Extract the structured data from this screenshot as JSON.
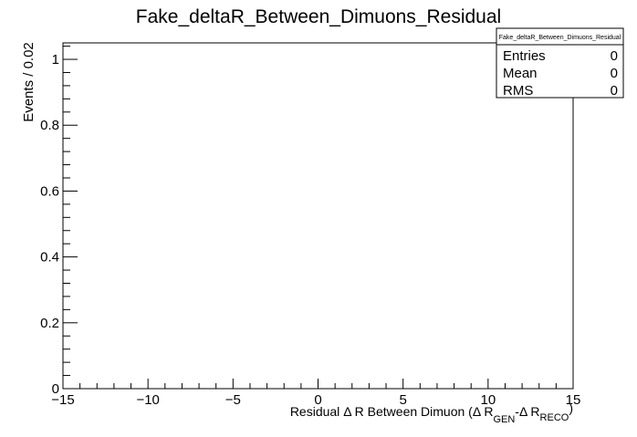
{
  "chart_data": {
    "type": "bar",
    "title": "Fake_deltaR_Between_Dimuons_Residual",
    "xlabel": {
      "prefix": "Residual ",
      "delta": "Δ",
      "middle": " R Between Dimuon (",
      "delta2": "Δ",
      "r1": " R",
      "sub1": "GEN",
      "minus": "-",
      "delta3": "Δ",
      "r2": " R",
      "sub2": "RECO",
      "close": ")"
    },
    "ylabel": "Events / 0.02",
    "xlim": [
      -15,
      15
    ],
    "ylim": [
      0,
      1.05
    ],
    "xticks": [
      {
        "value": -15,
        "label": "−15"
      },
      {
        "value": -10,
        "label": "−10"
      },
      {
        "value": -5,
        "label": "−5"
      },
      {
        "value": 0,
        "label": "0"
      },
      {
        "value": 5,
        "label": "5"
      },
      {
        "value": 10,
        "label": "10"
      },
      {
        "value": 15,
        "label": "15"
      }
    ],
    "xminor_step": 1,
    "yticks": [
      {
        "value": 0,
        "label": "0"
      },
      {
        "value": 0.2,
        "label": "0.2"
      },
      {
        "value": 0.4,
        "label": "0.4"
      },
      {
        "value": 0.6,
        "label": "0.6"
      },
      {
        "value": 0.8,
        "label": "0.8"
      },
      {
        "value": 1,
        "label": "1"
      }
    ],
    "yminor_step": 0.04,
    "grid": false,
    "values": [],
    "stats": {
      "title": "Fake_deltaR_Between_Dimuons_Residual",
      "rows": [
        {
          "label": "Entries",
          "value": "0"
        },
        {
          "label": "Mean",
          "value": "0"
        },
        {
          "label": "RMS",
          "value": "0"
        }
      ]
    }
  }
}
